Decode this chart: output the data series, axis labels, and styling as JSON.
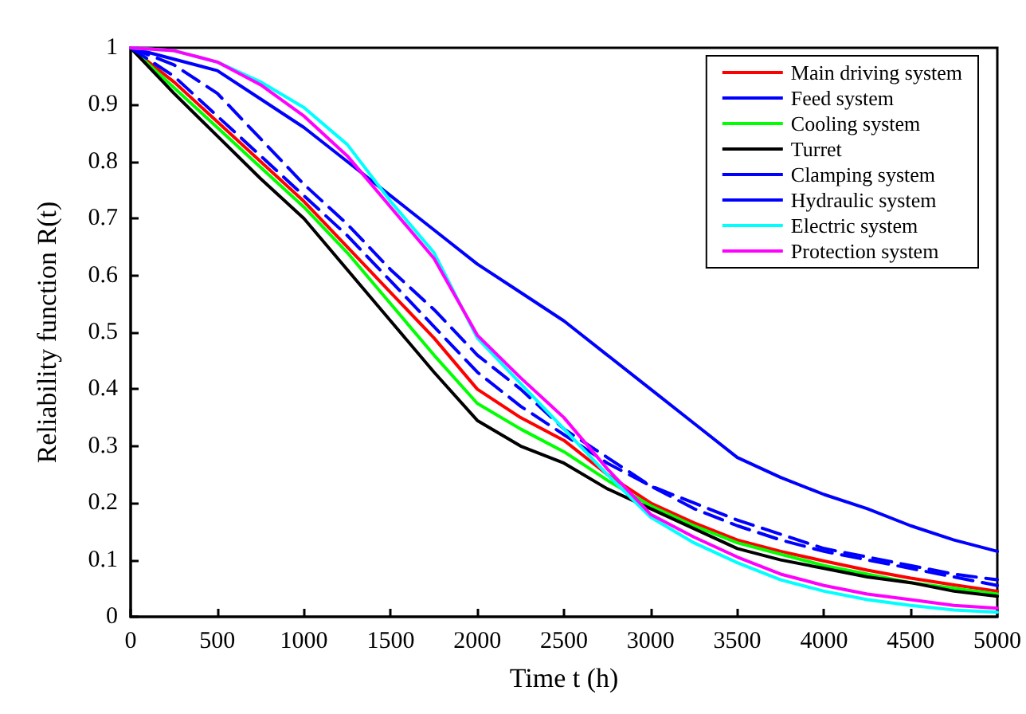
{
  "chart_data": {
    "type": "line",
    "xlabel": "Time t (h)",
    "ylabel": "Reliability function R(t)",
    "x": [
      0,
      250,
      500,
      750,
      1000,
      1250,
      1500,
      1750,
      2000,
      2250,
      2500,
      2750,
      3000,
      3250,
      3500,
      3750,
      4000,
      4250,
      4500,
      4750,
      5000
    ],
    "series": [
      {
        "name": "Main driving system",
        "color": "#ff0000",
        "values": [
          1,
          0.94,
          0.87,
          0.8,
          0.73,
          0.65,
          0.57,
          0.49,
          0.4,
          0.35,
          0.31,
          0.25,
          0.2,
          0.165,
          0.135,
          0.115,
          0.098,
          0.082,
          0.068,
          0.056,
          0.045
        ]
      },
      {
        "name": "Feed system",
        "color": "#0000ff",
        "values": [
          1,
          0.98,
          0.96,
          0.91,
          0.86,
          0.8,
          0.74,
          0.68,
          0.62,
          0.57,
          0.52,
          0.46,
          0.4,
          0.34,
          0.28,
          0.245,
          0.215,
          0.19,
          0.16,
          0.135,
          0.115
        ]
      },
      {
        "name": "Cooling system",
        "color": "#00ff00",
        "values": [
          1,
          0.93,
          0.86,
          0.79,
          0.72,
          0.64,
          0.55,
          0.46,
          0.375,
          0.33,
          0.29,
          0.24,
          0.195,
          0.16,
          0.13,
          0.11,
          0.09,
          0.075,
          0.06,
          0.05,
          0.04
        ]
      },
      {
        "name": "Turret",
        "color": "#000000",
        "values": [
          1,
          0.92,
          0.845,
          0.77,
          0.7,
          0.61,
          0.52,
          0.43,
          0.345,
          0.3,
          0.27,
          0.225,
          0.19,
          0.155,
          0.12,
          0.1,
          0.085,
          0.07,
          0.06,
          0.045,
          0.036
        ]
      },
      {
        "name": "Clamping system",
        "color": "#0000ff",
        "line_style": "dashed",
        "values": [
          1,
          0.97,
          0.92,
          0.84,
          0.76,
          0.69,
          0.61,
          0.54,
          0.46,
          0.4,
          0.33,
          0.28,
          0.23,
          0.19,
          0.16,
          0.135,
          0.115,
          0.1,
          0.085,
          0.07,
          0.055
        ]
      },
      {
        "name": "Hydraulic system",
        "color": "#0000ff",
        "line_style": "dashed",
        "values": [
          1,
          0.95,
          0.88,
          0.81,
          0.74,
          0.67,
          0.59,
          0.51,
          0.43,
          0.37,
          0.32,
          0.27,
          0.23,
          0.2,
          0.17,
          0.145,
          0.12,
          0.105,
          0.09,
          0.075,
          0.065
        ]
      },
      {
        "name": "Electric system",
        "color": "#00ffff",
        "values": [
          1,
          0.995,
          0.975,
          0.94,
          0.895,
          0.83,
          0.73,
          0.64,
          0.49,
          0.41,
          0.33,
          0.25,
          0.175,
          0.13,
          0.095,
          0.065,
          0.045,
          0.03,
          0.02,
          0.012,
          0.008
        ]
      },
      {
        "name": "Protection system",
        "color": "#ff00ff",
        "values": [
          1,
          0.995,
          0.975,
          0.935,
          0.88,
          0.81,
          0.72,
          0.63,
          0.495,
          0.42,
          0.35,
          0.26,
          0.18,
          0.14,
          0.105,
          0.075,
          0.055,
          0.04,
          0.03,
          0.02,
          0.015
        ]
      }
    ],
    "xlim": [
      0,
      5000
    ],
    "xticks": [
      0,
      500,
      1000,
      1500,
      2000,
      2500,
      3000,
      3500,
      4000,
      4500,
      5000
    ],
    "ylim": [
      0,
      1
    ],
    "yticks": [
      0,
      0.1,
      0.2,
      0.3,
      0.4,
      0.5,
      0.6,
      0.7,
      0.8,
      0.9,
      1
    ],
    "grid": false,
    "legend": "top right",
    "marker": "none",
    "line_style": "solid"
  }
}
